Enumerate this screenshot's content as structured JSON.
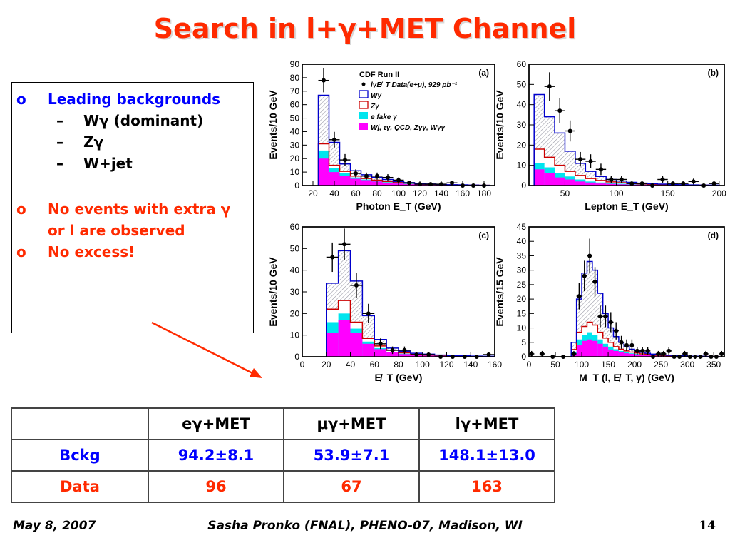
{
  "slide": {
    "title": "Search in l+γ+MET Channel",
    "bullets": [
      {
        "marker": "o",
        "text": "Leading backgrounds",
        "color": "#0000ff"
      },
      {
        "marker": "–",
        "text": "Wγ (dominant)"
      },
      {
        "marker": "–",
        "text": "Zγ"
      },
      {
        "marker": "–",
        "text": "W+jet"
      },
      {
        "marker": "o",
        "text": "No events with extra γ or l are observed",
        "color": "#ff2a00"
      },
      {
        "marker": "o",
        "text": "No excess!",
        "color": "#ff2a00"
      }
    ],
    "footer": {
      "date": "May 8, 2007",
      "author": "Sasha Pronko (FNAL), PHENO-07, Madison, WI",
      "page": "14"
    }
  },
  "table": {
    "headers": [
      "",
      "eγ+MET",
      "μγ+MET",
      "lγ+MET"
    ],
    "rows": [
      {
        "label": "Bckg",
        "label_color": "#0000ff",
        "values": [
          "94.2±8.1",
          "53.9±7.1",
          "148.1±13.0"
        ],
        "value_color": "#0000ff"
      },
      {
        "label": "Data",
        "label_color": "#ff2a00",
        "values": [
          "96",
          "67",
          "163"
        ],
        "value_color": "#ff2a00"
      }
    ]
  },
  "chart_data": [
    {
      "type": "bar",
      "panel": "(a)",
      "xlabel": "Photon E_T (GeV)",
      "ylabel": "Events/10 GeV",
      "xlim": [
        10,
        190
      ],
      "ylim": [
        0,
        90
      ],
      "xticks": [
        20,
        40,
        60,
        80,
        100,
        120,
        140,
        160,
        180
      ],
      "yticks": [
        0,
        10,
        20,
        30,
        40,
        50,
        60,
        70,
        80,
        90
      ],
      "legend_title": "CDF Run II",
      "legend": [
        {
          "name": "lγE̸_T Data(e+μ), 929 pb⁻¹",
          "kind": "marker",
          "color": "#000000"
        },
        {
          "name": "Wγ",
          "kind": "box",
          "color": "#0000cc"
        },
        {
          "name": "Zγ",
          "kind": "box",
          "color": "#cc0000"
        },
        {
          "name": "e fake γ",
          "kind": "fill",
          "color": "#00e5ee"
        },
        {
          "name": "Wj, τγ, QCD, Zγγ, Wγγ",
          "kind": "fill",
          "color": "#ff00ff"
        }
      ],
      "bin_edges": [
        25,
        35,
        45,
        55,
        65,
        75,
        85,
        95,
        105,
        115,
        125,
        135,
        145,
        155,
        165,
        175,
        185
      ],
      "stack": {
        "other": [
          20,
          10,
          7,
          5,
          4,
          3,
          2,
          1.5,
          1,
          1,
          0.5,
          0.5,
          0.3,
          0.2,
          0.2,
          0.1
        ],
        "efake": [
          26,
          13,
          9,
          6,
          4.5,
          3.5,
          2.5,
          2,
          1.5,
          1.2,
          0.8,
          0.6,
          0.4,
          0.3,
          0.3,
          0.2
        ],
        "zg": [
          31,
          15,
          10.5,
          7,
          5.2,
          4,
          3,
          2.2,
          1.8,
          1.4,
          1,
          0.7,
          0.5,
          0.4,
          0.3,
          0.2
        ],
        "wg": [
          67,
          32,
          16,
          11,
          8,
          6,
          4.5,
          3,
          2.2,
          1.6,
          1.1,
          0.8,
          0.6,
          0.5,
          0.3,
          0.2
        ]
      },
      "data_points": {
        "x": [
          30,
          40,
          50,
          60,
          70,
          80,
          90,
          100,
          110,
          120,
          130,
          140,
          150,
          160,
          170,
          180
        ],
        "y": [
          78,
          34,
          19,
          9,
          7,
          7,
          6,
          4,
          2,
          1,
          1,
          1,
          2,
          0,
          0,
          0
        ]
      }
    },
    {
      "type": "bar",
      "panel": "(b)",
      "xlabel": "Lepton E_T (GeV)",
      "ylabel": "Events/10 GeV",
      "xlim": [
        15,
        205
      ],
      "ylim": [
        0,
        60
      ],
      "xticks": [
        50,
        100,
        150,
        200
      ],
      "yticks": [
        0,
        10,
        20,
        30,
        40,
        50,
        60
      ],
      "bin_edges": [
        20,
        30,
        40,
        50,
        60,
        70,
        80,
        90,
        100,
        110,
        120,
        130,
        140,
        150,
        160,
        170,
        180,
        190,
        200
      ],
      "stack": {
        "other": [
          8,
          6,
          4,
          3,
          2,
          1.5,
          1,
          0.8,
          0.6,
          0.5,
          0.4,
          0.3,
          0.2,
          0.2,
          0.1,
          0.1,
          0.1,
          0.1
        ],
        "efake": [
          11,
          9,
          6,
          4.5,
          3,
          2,
          1.5,
          1.2,
          0.9,
          0.7,
          0.5,
          0.4,
          0.3,
          0.3,
          0.2,
          0.2,
          0.1,
          0.1
        ],
        "zg": [
          18,
          14,
          10,
          7,
          5,
          3.5,
          2.5,
          1.8,
          1.4,
          1,
          0.8,
          0.6,
          0.5,
          0.4,
          0.3,
          0.2,
          0.2,
          0.1
        ],
        "wg": [
          45,
          34,
          26,
          17,
          11,
          7,
          4.5,
          3,
          2.2,
          1.6,
          1.2,
          0.9,
          0.7,
          0.5,
          0.4,
          0.3,
          0.2,
          0.2
        ]
      },
      "data_points": {
        "x": [
          35,
          45,
          55,
          65,
          75,
          85,
          95,
          105,
          115,
          125,
          135,
          145,
          155,
          165,
          175,
          185,
          195
        ],
        "y": [
          49,
          37,
          27,
          13,
          12,
          8,
          3,
          3,
          1,
          1,
          0,
          3,
          1,
          1,
          2,
          0,
          1
        ]
      }
    },
    {
      "type": "bar",
      "panel": "(c)",
      "xlabel": "E̸_T (GeV)",
      "ylabel": "Events/10 GeV",
      "xlim": [
        0,
        160
      ],
      "ylim": [
        0,
        60
      ],
      "xticks": [
        0,
        20,
        40,
        60,
        80,
        100,
        120,
        140,
        160
      ],
      "yticks": [
        0,
        10,
        20,
        30,
        40,
        50,
        60
      ],
      "bin_edges": [
        20,
        30,
        40,
        50,
        60,
        70,
        80,
        90,
        100,
        110,
        120,
        130,
        140,
        150,
        160
      ],
      "stack": {
        "other": [
          11,
          17,
          11,
          6,
          3.5,
          2,
          1.2,
          0.8,
          0.5,
          0.4,
          0.3,
          0.2,
          0.1,
          0.1
        ],
        "efake": [
          16,
          20,
          13,
          7,
          4,
          2.3,
          1.4,
          0.9,
          0.6,
          0.5,
          0.3,
          0.2,
          0.1,
          0.1
        ],
        "zg": [
          22,
          26,
          16,
          8.5,
          5,
          3,
          1.8,
          1.1,
          0.8,
          0.6,
          0.4,
          0.3,
          0.2,
          0.1
        ],
        "wg": [
          34,
          49,
          35,
          19,
          8,
          4,
          2.5,
          1.6,
          1.2,
          0.8,
          0.5,
          0.4,
          0.3,
          0.2
        ]
      },
      "data_points": {
        "x": [
          25,
          35,
          45,
          55,
          65,
          75,
          85,
          95,
          105,
          115,
          125,
          135,
          145,
          155
        ],
        "y": [
          46,
          52,
          33,
          20,
          6,
          3,
          3,
          1,
          1,
          0,
          0,
          0,
          0,
          1
        ]
      }
    },
    {
      "type": "bar",
      "panel": "(d)",
      "xlabel": "M_T (l, E̸_T, γ) (GeV)",
      "ylabel": "Events/15 GeV",
      "xlim": [
        0,
        370
      ],
      "ylim": [
        0,
        45
      ],
      "xticks": [
        0,
        50,
        100,
        150,
        200,
        250,
        300,
        350
      ],
      "yticks": [
        0,
        5,
        10,
        15,
        20,
        25,
        30,
        35,
        40,
        45
      ],
      "bin_edges": [
        80,
        90,
        100,
        110,
        120,
        130,
        140,
        150,
        160,
        170,
        180,
        190,
        200,
        210,
        220,
        230,
        240,
        250,
        260,
        270,
        280,
        290,
        300,
        310,
        320,
        330,
        340,
        350,
        360
      ],
      "stack": {
        "other": [
          1,
          4,
          5.5,
          6,
          5.5,
          4.5,
          3.5,
          2.5,
          2,
          1.5,
          1.2,
          1,
          0.8,
          0.6,
          0.5,
          0.4,
          0.3,
          0.3,
          0.2,
          0.2,
          0.1,
          0.1,
          0.1,
          0.1,
          0.1,
          0.1,
          0.1,
          0.1
        ],
        "efake": [
          1.5,
          6,
          7.5,
          8.5,
          7.5,
          6,
          4.5,
          3.5,
          2.6,
          2,
          1.5,
          1.2,
          1,
          0.8,
          0.6,
          0.5,
          0.4,
          0.3,
          0.3,
          0.2,
          0.2,
          0.1,
          0.1,
          0.1,
          0.1,
          0.1,
          0.1,
          0.1
        ],
        "zg": [
          2.5,
          8.5,
          10.5,
          12,
          11,
          8.5,
          6.5,
          5,
          3.5,
          2.6,
          2,
          1.6,
          1.3,
          1,
          0.8,
          0.6,
          0.5,
          0.4,
          0.3,
          0.3,
          0.2,
          0.2,
          0.2,
          0.1,
          0.1,
          0.1,
          0.1,
          0.1
        ],
        "wg": [
          5,
          20,
          29,
          33,
          30,
          22,
          15,
          10,
          7,
          5,
          3.5,
          2.6,
          2,
          1.5,
          1.2,
          0.9,
          0.7,
          0.6,
          0.5,
          0.4,
          0.3,
          0.3,
          0.2,
          0.2,
          0.2,
          0.1,
          0.1,
          0.1
        ]
      },
      "data_points": {
        "x": [
          5,
          25,
          45,
          65,
          85,
          95,
          105,
          115,
          125,
          135,
          145,
          155,
          165,
          175,
          185,
          195,
          205,
          215,
          225,
          235,
          245,
          255,
          265,
          275,
          285,
          295,
          305,
          315,
          325,
          335,
          345,
          355,
          365
        ],
        "y": [
          1,
          1,
          0,
          0,
          1,
          21,
          28,
          35,
          26,
          14,
          14,
          12,
          9,
          5,
          4,
          4,
          2,
          2,
          2,
          0,
          1,
          1,
          2,
          0,
          0,
          1,
          0,
          0,
          0,
          1,
          0,
          0,
          1
        ]
      }
    }
  ]
}
